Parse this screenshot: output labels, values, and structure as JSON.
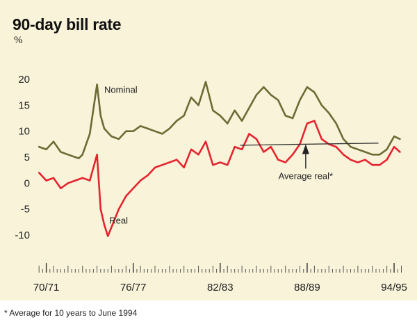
{
  "chart_data": {
    "type": "line",
    "title": "90-day bill rate",
    "ylabel": "%",
    "xlabel": "",
    "ylim": [
      -10,
      20
    ],
    "yticks": [
      20,
      15,
      10,
      5,
      0,
      -5,
      -10
    ],
    "xlim": [
      1969.8,
      1995.6
    ],
    "xticks": [
      {
        "label": "70/71",
        "x": 1970.5
      },
      {
        "label": "76/77",
        "x": 1976.5
      },
      {
        "label": "82/83",
        "x": 1982.5
      },
      {
        "label": "88/89",
        "x": 1988.5
      },
      {
        "label": "94/95",
        "x": 1994.5
      }
    ],
    "quarter_tick_years": [
      1970.0,
      1995.0
    ],
    "series": [
      {
        "name": "Nominal",
        "color": "#6b6b34",
        "x": [
          1970.0,
          1970.5,
          1971.0,
          1971.5,
          1972.0,
          1972.5,
          1972.75,
          1973.0,
          1973.5,
          1974.0,
          1974.25,
          1974.5,
          1975.0,
          1975.5,
          1976.0,
          1976.5,
          1977.0,
          1977.5,
          1978.0,
          1978.5,
          1979.0,
          1979.5,
          1980.0,
          1980.5,
          1981.0,
          1981.5,
          1982.0,
          1982.5,
          1983.0,
          1983.5,
          1984.0,
          1984.5,
          1985.0,
          1985.5,
          1986.0,
          1986.5,
          1987.0,
          1987.5,
          1988.0,
          1988.5,
          1989.0,
          1989.5,
          1990.0,
          1990.5,
          1991.0,
          1991.5,
          1992.0,
          1992.5,
          1993.0,
          1993.5,
          1994.0,
          1994.5,
          1994.9
        ],
        "values": [
          7.0,
          6.5,
          8.0,
          6.0,
          5.5,
          5.0,
          4.8,
          5.5,
          9.5,
          19.0,
          13.0,
          10.5,
          9.0,
          8.5,
          10.0,
          10.0,
          11.0,
          10.5,
          10.0,
          9.5,
          10.5,
          12.0,
          13.0,
          16.5,
          15.0,
          19.5,
          14.0,
          13.0,
          11.5,
          14.0,
          12.0,
          14.5,
          17.0,
          18.5,
          17.0,
          16.0,
          13.0,
          12.5,
          16.0,
          18.5,
          17.5,
          15.0,
          13.5,
          11.5,
          8.5,
          7.0,
          6.5,
          6.0,
          5.5,
          5.5,
          6.5,
          9.0,
          8.5
        ]
      },
      {
        "name": "Real",
        "color": "#e6232e",
        "x": [
          1970.0,
          1970.5,
          1971.0,
          1971.5,
          1972.0,
          1972.5,
          1973.0,
          1973.5,
          1974.0,
          1974.25,
          1974.5,
          1974.75,
          1975.0,
          1975.5,
          1976.0,
          1976.5,
          1977.0,
          1977.5,
          1978.0,
          1978.5,
          1979.0,
          1979.5,
          1980.0,
          1980.5,
          1981.0,
          1981.5,
          1982.0,
          1982.5,
          1983.0,
          1983.5,
          1984.0,
          1984.5,
          1985.0,
          1985.5,
          1986.0,
          1986.5,
          1987.0,
          1987.5,
          1988.0,
          1988.5,
          1989.0,
          1989.5,
          1990.0,
          1990.5,
          1991.0,
          1991.5,
          1992.0,
          1992.5,
          1993.0,
          1993.5,
          1994.0,
          1994.5,
          1994.9
        ],
        "values": [
          2.0,
          0.5,
          1.0,
          -1.0,
          0.0,
          0.5,
          1.0,
          0.5,
          5.5,
          -5.0,
          -8.0,
          -10.2,
          -8.5,
          -5.0,
          -2.5,
          -1.0,
          0.5,
          1.5,
          3.0,
          3.5,
          4.0,
          4.5,
          3.0,
          6.5,
          5.5,
          8.0,
          3.5,
          4.0,
          3.5,
          7.0,
          6.5,
          9.5,
          8.5,
          6.0,
          7.0,
          4.5,
          4.0,
          5.5,
          7.5,
          11.5,
          12.0,
          8.5,
          7.5,
          7.0,
          5.5,
          4.5,
          4.0,
          4.5,
          3.5,
          3.5,
          4.5,
          7.0,
          6.0
        ]
      },
      {
        "name": "Average real*",
        "color": "#333333",
        "x": [
          1983.9,
          1993.4
        ],
        "values": [
          7.3,
          7.7
        ]
      }
    ],
    "annotations": {
      "nominal_label": "Nominal",
      "real_label": "Real",
      "average_label": "Average real*"
    },
    "footnote": "* Average for 10 years to June 1994"
  }
}
